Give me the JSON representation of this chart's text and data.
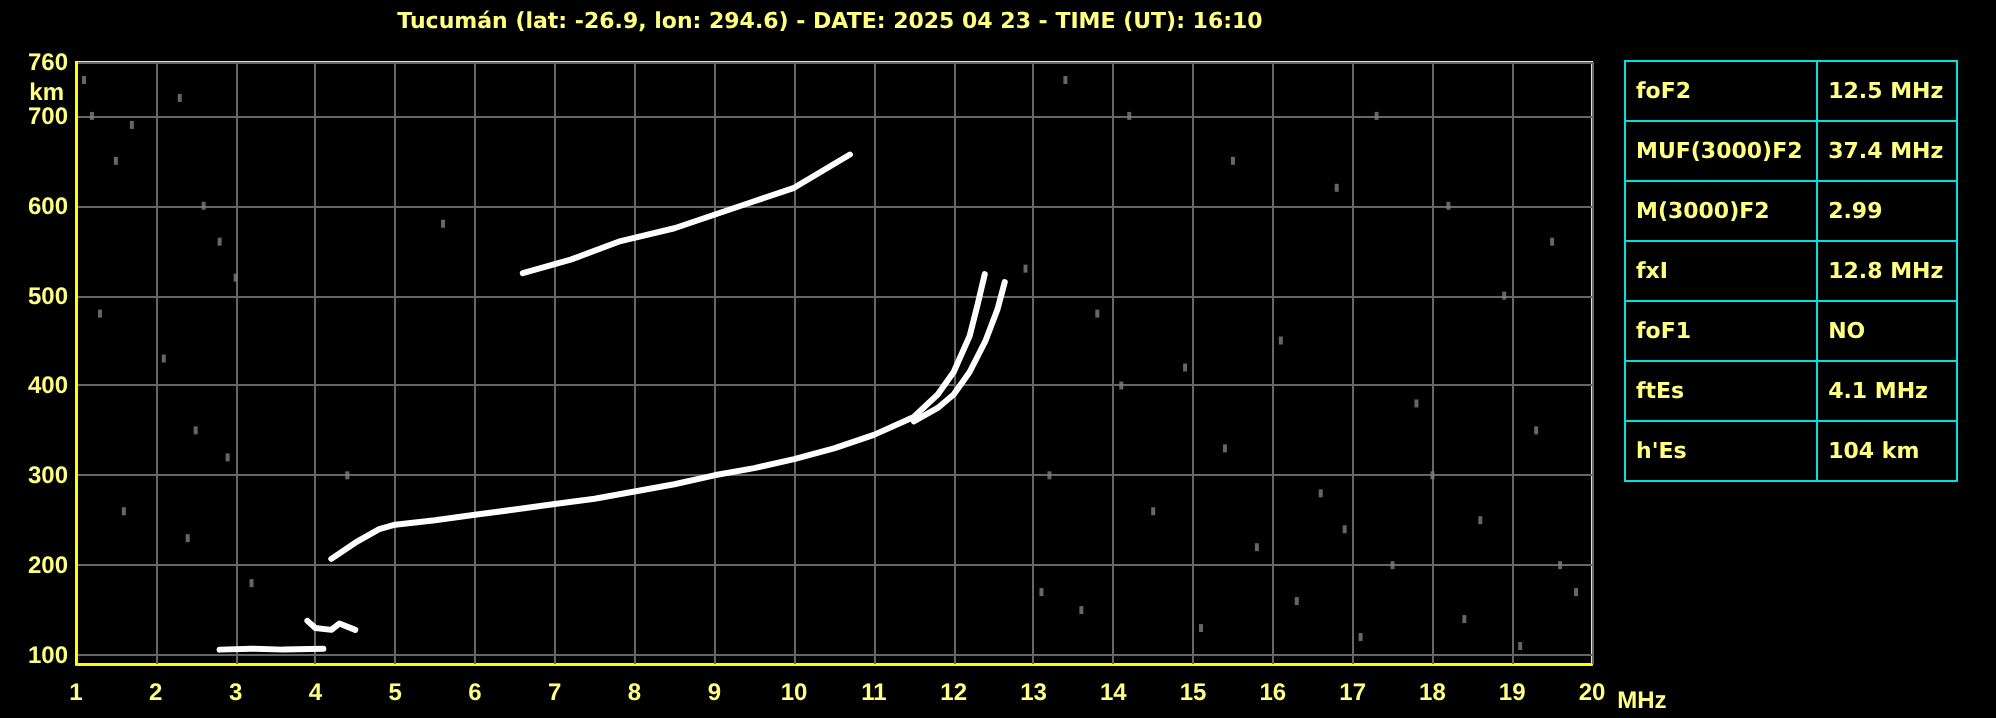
{
  "chart_data": [
    {
      "type": "line",
      "title": "Tucumán (lat: -26.9, lon: 294.6) - DATE: 2025 04 23 - TIME (UT): 16:10",
      "xlabel": "MHz",
      "ylabel": "km",
      "xlim": [
        1,
        20
      ],
      "xticks": [
        1,
        2,
        3,
        4,
        5,
        6,
        7,
        8,
        9,
        10,
        11,
        12,
        13,
        14,
        15,
        16,
        17,
        18,
        19,
        20
      ],
      "ylim": [
        90,
        760
      ],
      "yticks": [
        100,
        200,
        300,
        400,
        500,
        600,
        700,
        760
      ],
      "grid": true,
      "marker": "none",
      "line_style": "solid",
      "series": [
        {
          "color": "#ffffff",
          "x": [
            4.2,
            4.5,
            4.8,
            5,
            5.5,
            6,
            6.5,
            7,
            7.5,
            8,
            8.5,
            9,
            9.5,
            10,
            10.5,
            11,
            11.5,
            11.8,
            12,
            12.2,
            12.3,
            12.39
          ],
          "values": [
            207,
            225,
            240,
            245,
            250,
            256,
            262,
            268,
            274,
            282,
            290,
            300,
            308,
            318,
            330,
            345,
            365,
            390,
            415,
            455,
            490,
            524
          ]
        },
        {
          "color": "#ffffff",
          "x": [
            11.5,
            11.8,
            12,
            12.2,
            12.4,
            12.55,
            12.64
          ],
          "values": [
            360,
            375,
            390,
            415,
            450,
            485,
            515
          ]
        },
        {
          "color": "#ffffff",
          "x": [
            6.6,
            7.2,
            7.8,
            8.5,
            9,
            9.5,
            10,
            10.7
          ],
          "values": [
            525,
            540,
            560,
            575,
            590,
            605,
            620,
            657
          ]
        },
        {
          "color": "#ffffff",
          "x": [
            2.8,
            3.2,
            3.6,
            4.1
          ],
          "values": [
            106,
            107,
            106,
            107
          ]
        },
        {
          "color": "#ffffff",
          "x": [
            3.9,
            4.0,
            4.2,
            4.3,
            4.5
          ],
          "values": [
            138,
            130,
            128,
            135,
            128
          ]
        },
        {
          "type": "scatter",
          "marker": "square",
          "color": "#808080",
          "x": [
            1.1,
            1.2,
            1.5,
            1.7,
            2.3,
            2.6,
            2.8,
            3.0,
            1.3,
            2.1,
            2.5,
            2.9,
            1.6,
            2.4,
            3.2,
            4.4,
            5.6,
            13.4,
            14.2,
            15.5,
            16.8,
            17.3,
            18.2,
            19.5,
            13.8,
            14.9,
            16.1,
            17.8,
            18.9,
            19.3,
            13.2,
            14.5,
            15.8,
            16.6,
            17.5,
            18.6,
            19.8,
            13.6,
            15.1,
            16.3,
            17.1,
            18.4,
            19.1,
            14.1,
            15.4,
            16.9,
            18.0,
            19.6,
            12.9,
            13.1
          ],
          "values": [
            740,
            700,
            650,
            690,
            720,
            600,
            560,
            520,
            480,
            430,
            350,
            320,
            260,
            230,
            180,
            300,
            580,
            740,
            700,
            650,
            620,
            700,
            600,
            560,
            480,
            420,
            450,
            380,
            500,
            350,
            300,
            260,
            220,
            280,
            200,
            250,
            170,
            150,
            130,
            160,
            120,
            140,
            110,
            400,
            330,
            240,
            300,
            200,
            530,
            170
          ]
        }
      ]
    },
    {
      "type": "other",
      "annotations": [
        "foF2",
        "12.5 MHz",
        "MUF(3000)F2",
        "37.4 MHz",
        "M(3000)F2",
        "2.99",
        "fxI",
        "12.8 MHz",
        "foF1",
        "NO",
        "ftEs",
        "4.1 MHz",
        "h'Es",
        "104 km"
      ]
    }
  ]
}
